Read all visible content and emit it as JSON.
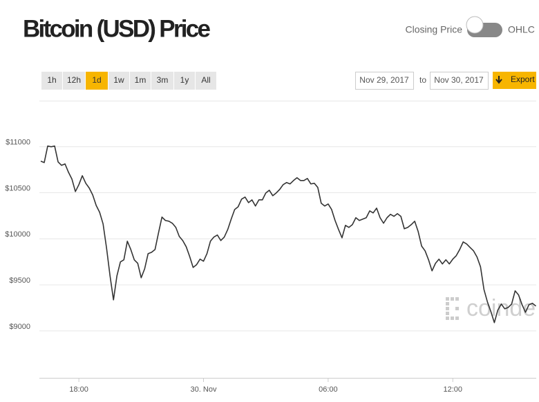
{
  "header": {
    "title": "Bitcoin (USD) Price"
  },
  "toggle": {
    "left": "Closing Price",
    "right": "OHLC"
  },
  "range_buttons": [
    "1h",
    "12h",
    "1d",
    "1w",
    "1m",
    "3m",
    "1y",
    "All"
  ],
  "date_range": {
    "from": "Nov 29, 2017",
    "separator": "to",
    "to": "Nov 30, 2017"
  },
  "export": "Export",
  "chart_data": {
    "type": "line",
    "color": "#333333",
    "grid": true,
    "watermark": "coindesk",
    "x": [
      970,
      980,
      990,
      1000,
      1010,
      1020,
      1030,
      1040,
      1050,
      1060,
      1070,
      1080,
      1090,
      1100,
      1110,
      1120,
      1130,
      1140,
      1150,
      1160,
      1170,
      1180,
      1190,
      1200,
      1210,
      1220,
      1230,
      1240,
      1250,
      1260,
      1270,
      1280,
      1290,
      1300,
      1310,
      1320,
      1330,
      1340,
      1350,
      1360,
      1370,
      1380,
      1390,
      1400,
      1410,
      1420,
      1430,
      1440,
      1450,
      1460,
      1470,
      1480,
      1490,
      1500,
      1510,
      1520,
      1530,
      1540,
      1550,
      1560,
      1570,
      1580,
      1590,
      1600,
      1610,
      1620,
      1630,
      1640,
      1650,
      1660,
      1670,
      1680,
      1690,
      1700,
      1710,
      1720,
      1730,
      1740,
      1750,
      1760,
      1770,
      1780,
      1790,
      1800,
      1810,
      1820,
      1830,
      1840,
      1850,
      1860,
      1870,
      1880,
      1890,
      1900,
      1910,
      1920,
      1930,
      1940,
      1950,
      1960,
      1970,
      1980,
      1990,
      2000,
      2010,
      2020,
      2030,
      2040,
      2050,
      2060,
      2070,
      2080,
      2090,
      2100,
      2110,
      2120,
      2130,
      2140,
      2150,
      2160,
      2170,
      2180,
      2190,
      2200,
      2210,
      2220,
      2230,
      2240,
      2250,
      2260,
      2270,
      2280,
      2290,
      2300,
      2310,
      2320,
      2330,
      2340,
      2350,
      2360,
      2370,
      2380,
      2390,
      2400
    ],
    "values": [
      10843,
      10828,
      11007,
      11000,
      11007,
      10835,
      10798,
      10813,
      10723,
      10648,
      10513,
      10588,
      10685,
      10603,
      10551,
      10476,
      10363,
      10288,
      10161,
      9899,
      9599,
      9337,
      9599,
      9749,
      9772,
      9974,
      9884,
      9772,
      9734,
      9577,
      9674,
      9839,
      9854,
      9884,
      10064,
      10236,
      10199,
      10191,
      10169,
      10124,
      10026,
      9981,
      9914,
      9809,
      9689,
      9719,
      9779,
      9757,
      9839,
      9974,
      10019,
      10041,
      9981,
      10019,
      10101,
      10214,
      10318,
      10348,
      10431,
      10453,
      10393,
      10423,
      10356,
      10423,
      10423,
      10498,
      10528,
      10468,
      10498,
      10536,
      10588,
      10611,
      10596,
      10633,
      10663,
      10633,
      10633,
      10655,
      10596,
      10603,
      10558,
      10386,
      10356,
      10378,
      10318,
      10199,
      10101,
      10011,
      10146,
      10124,
      10154,
      10229,
      10199,
      10214,
      10229,
      10303,
      10281,
      10333,
      10229,
      10169,
      10229,
      10266,
      10244,
      10273,
      10244,
      10109,
      10124,
      10154,
      10191,
      10079,
      9921,
      9869,
      9772,
      9652,
      9734,
      9779,
      9727,
      9772,
      9727,
      9779,
      9817,
      9884,
      9966,
      9944,
      9906,
      9869,
      9802,
      9697,
      9450,
      9315,
      9210,
      9090,
      9225,
      9292,
      9240,
      9255,
      9292,
      9435,
      9390,
      9285,
      9202,
      9285,
      9300,
      9270
    ],
    "xlim": [
      966,
      2401
    ],
    "xticks": [
      {
        "value": 1080,
        "label": "18:00"
      },
      {
        "value": 1440,
        "label": "30. Nov"
      },
      {
        "value": 1800,
        "label": "06:00"
      },
      {
        "value": 2160,
        "label": "12:00"
      }
    ],
    "ylim": [
      8490,
      11500
    ],
    "yticks": [
      {
        "value": 9000,
        "label": "$9000"
      },
      {
        "value": 9500,
        "label": "$9500"
      },
      {
        "value": 10000,
        "label": "$10000"
      },
      {
        "value": 10500,
        "label": "$10500"
      },
      {
        "value": 11000,
        "label": "$11000"
      }
    ]
  }
}
